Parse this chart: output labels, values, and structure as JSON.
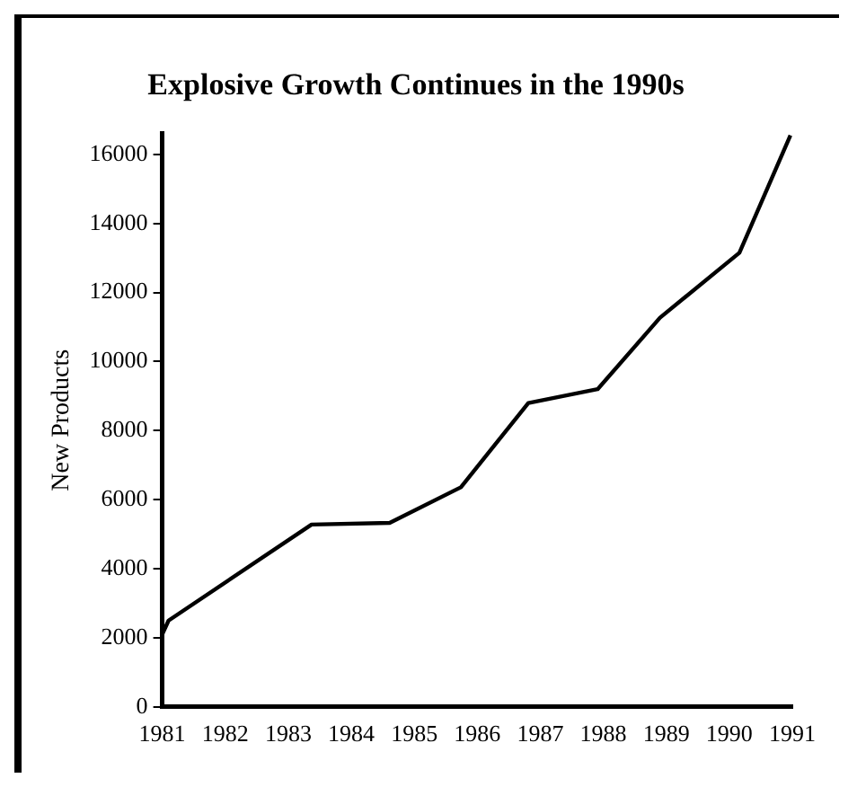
{
  "chart_data": {
    "type": "line",
    "title": "Explosive Growth Continues in the 1990s",
    "ylabel": "New Products",
    "x": [
      1981,
      1981.1,
      1983.37,
      1984.61,
      1985.74,
      1986.81,
      1987.91,
      1988.9,
      1990.16,
      1990.97
    ],
    "series": [
      {
        "color": "#000000",
        "values": [
          2100,
          2500,
          5280,
          5330,
          6360,
          8800,
          9200,
          11270,
          13150,
          16550
        ]
      }
    ],
    "xlim": [
      1981,
      1991
    ],
    "xticks": [
      1981,
      1982,
      1983,
      1984,
      1985,
      1986,
      1987,
      1988,
      1989,
      1990,
      1991
    ],
    "ylim": [
      0,
      16600
    ],
    "yticks": [
      0,
      2000,
      4000,
      6000,
      8000,
      10000,
      12000,
      14000,
      16000
    ],
    "grid": false,
    "legend": false,
    "marker": "none",
    "line_style": "solid"
  }
}
